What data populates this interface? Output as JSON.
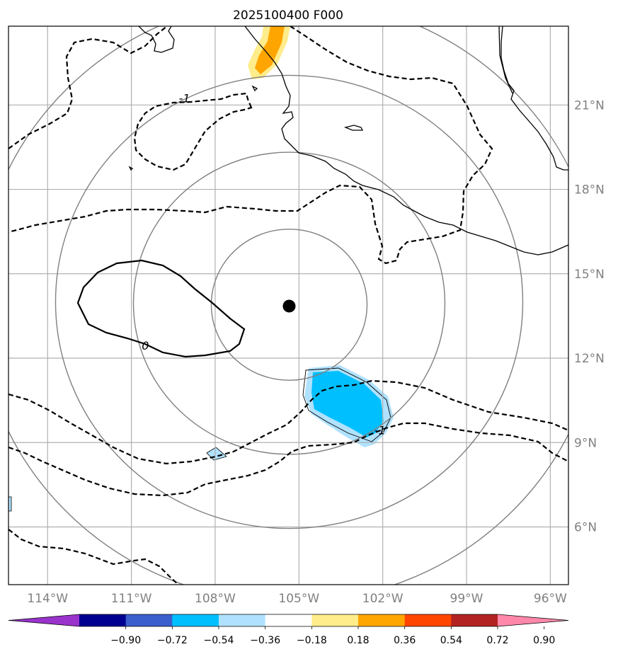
{
  "title": "2025100400 F000",
  "map": {
    "lon_ticks": [
      {
        "lon": -114,
        "label": "114°W"
      },
      {
        "lon": -111,
        "label": "111°W"
      },
      {
        "lon": -108,
        "label": "108°W"
      },
      {
        "lon": -105,
        "label": "105°W"
      },
      {
        "lon": -102,
        "label": "102°W"
      },
      {
        "lon": -99,
        "label": "99°W"
      },
      {
        "lon": -96,
        "label": "96°W"
      }
    ],
    "lat_ticks": [
      {
        "lat": 6,
        "label": "6°N"
      },
      {
        "lat": 9,
        "label": "9°N"
      },
      {
        "lat": 12,
        "label": "12°N"
      },
      {
        "lat": 15,
        "label": "15°N"
      },
      {
        "lat": 18,
        "label": "18°N"
      },
      {
        "lat": 21,
        "label": "21°N"
      }
    ],
    "extent": {
      "lon_min": -115.4,
      "lon_max": -95.35,
      "lat_min": 3.95,
      "lat_max": 23.8
    },
    "center": {
      "lon": -105.35,
      "lat": 13.85
    },
    "contour_labels": [
      {
        "text": "-1",
        "lon": -109.1,
        "lat": 21.1
      },
      {
        "text": "0",
        "lon": -110.5,
        "lat": 12.3
      },
      {
        "text": "-1",
        "lon": -102.1,
        "lat": 9.3
      }
    ]
  },
  "colorbar": {
    "levels": [
      "−0.90",
      "−0.72",
      "−0.54",
      "−0.36",
      "−0.18",
      "0.18",
      "0.36",
      "0.54",
      "0.72",
      "0.90"
    ],
    "colors": [
      "#9933cc",
      "#000090",
      "#3a5fcd",
      "#00bfff",
      "#b0e2ff",
      "#ffffff",
      "#ffec8b",
      "#ffa500",
      "#ff4500",
      "#b22222",
      "#ff88aa"
    ]
  }
}
